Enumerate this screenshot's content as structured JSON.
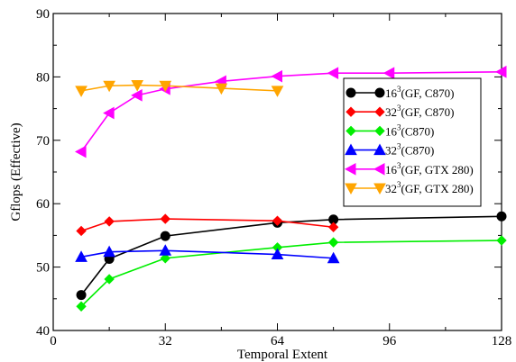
{
  "chart_data": {
    "type": "line",
    "title": "",
    "xlabel": "Temporal Extent",
    "ylabel": "Gflops (Effective)",
    "xlim": [
      0,
      128
    ],
    "ylim": [
      40,
      90
    ],
    "xticks": [
      0,
      32,
      64,
      96,
      128
    ],
    "yticks": [
      40,
      50,
      60,
      70,
      80,
      90
    ],
    "grid": false,
    "legend_position": "right",
    "series": [
      {
        "name_base": "16",
        "name_exp": "3",
        "name_rest": "(GF, C870)",
        "color": "#000000",
        "marker": "circle",
        "x": [
          8,
          16,
          32,
          64,
          80,
          128
        ],
        "y": [
          45.6,
          51.3,
          54.9,
          57.0,
          57.5,
          58.0
        ]
      },
      {
        "name_base": "32",
        "name_exp": "3",
        "name_rest": "(GF, C870)",
        "color": "#ff0000",
        "marker": "diamond",
        "x": [
          8,
          16,
          32,
          64,
          80
        ],
        "y": [
          55.7,
          57.2,
          57.6,
          57.3,
          56.3
        ]
      },
      {
        "name_base": "16",
        "name_exp": "3",
        "name_rest": "(C870)",
        "color": "#00ee00",
        "marker": "diamond",
        "x": [
          8,
          16,
          32,
          64,
          80,
          128
        ],
        "y": [
          43.8,
          48.1,
          51.4,
          53.1,
          53.9,
          54.2
        ]
      },
      {
        "name_base": "32",
        "name_exp": "3",
        "name_rest": "(C870)",
        "color": "#0000ff",
        "marker": "triangle-up",
        "x": [
          8,
          16,
          32,
          64,
          80
        ],
        "y": [
          51.6,
          52.4,
          52.6,
          52.0,
          51.4
        ]
      },
      {
        "name_base": "16",
        "name_exp": "3",
        "name_rest": "(GF, GTX 280)",
        "color": "#ff00ff",
        "marker": "triangle-left",
        "x": [
          8,
          16,
          24,
          32,
          48,
          64,
          80,
          96,
          128
        ],
        "y": [
          68.2,
          74.3,
          77.1,
          78.1,
          79.3,
          80.1,
          80.6,
          80.6,
          80.8
        ]
      },
      {
        "name_base": "32",
        "name_exp": "3",
        "name_rest": "(GF, GTX 280)",
        "color": "#ffa500",
        "marker": "triangle-down",
        "x": [
          8,
          16,
          24,
          32,
          48,
          64
        ],
        "y": [
          77.8,
          78.6,
          78.7,
          78.6,
          78.2,
          77.8
        ]
      }
    ]
  }
}
